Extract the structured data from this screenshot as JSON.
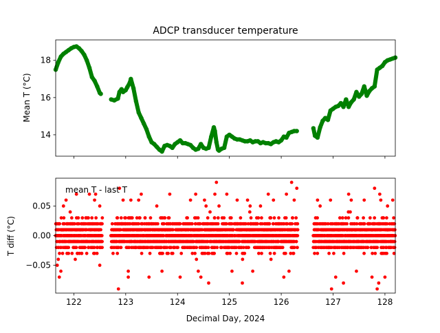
{
  "chart_data": [
    {
      "type": "line",
      "title": "ADCP transducer temperature",
      "xlabel": "",
      "ylabel": "Mean T (°C)",
      "xlim": [
        121.65,
        128.2
      ],
      "ylim": [
        12.85,
        19.1
      ],
      "yticks": [
        14,
        16,
        18
      ],
      "ytick_labels": [
        "14",
        "16",
        "18"
      ],
      "xticks": [
        122,
        123,
        124,
        125,
        126,
        127,
        128
      ],
      "show_xtick_labels": false,
      "grid": false,
      "color": "#008000",
      "marker": "circle",
      "series": [
        {
          "name": "",
          "x": [
            121.65,
            121.7,
            121.75,
            121.8,
            121.85,
            121.9,
            121.95,
            122.0,
            122.05,
            122.1,
            122.15,
            122.2,
            122.25,
            122.3,
            122.35,
            122.4,
            122.45,
            122.5,
            122.52,
            null,
            122.72,
            122.78,
            122.85,
            122.88,
            122.92,
            122.95,
            123.0,
            123.03,
            123.08,
            123.1,
            123.15,
            123.2,
            123.25,
            123.3,
            123.35,
            123.4,
            123.45,
            123.5,
            123.55,
            123.6,
            123.65,
            123.7,
            123.75,
            123.8,
            123.85,
            123.9,
            123.95,
            124.0,
            124.05,
            124.1,
            124.15,
            124.2,
            124.25,
            124.3,
            124.35,
            124.4,
            124.45,
            124.5,
            124.55,
            124.6,
            124.65,
            124.7,
            124.72,
            124.75,
            124.78,
            124.8,
            124.85,
            124.9,
            124.95,
            125.0,
            125.05,
            125.1,
            125.15,
            125.2,
            125.25,
            125.3,
            125.35,
            125.4,
            125.45,
            125.5,
            125.55,
            125.6,
            125.65,
            125.7,
            125.75,
            125.8,
            125.85,
            125.9,
            125.95,
            126.0,
            126.05,
            126.1,
            126.15,
            126.2,
            126.25,
            126.3,
            null,
            126.62,
            126.65,
            126.7,
            126.75,
            126.8,
            126.85,
            126.9,
            126.95,
            127.0,
            127.05,
            127.1,
            127.15,
            127.2,
            127.25,
            127.3,
            127.35,
            127.4,
            127.45,
            127.5,
            127.55,
            127.6,
            127.65,
            127.7,
            127.75,
            127.8,
            127.85,
            127.9,
            127.95,
            128.0,
            128.05,
            128.1,
            128.15,
            128.2
          ],
          "y": [
            17.5,
            17.9,
            18.2,
            18.35,
            18.45,
            18.55,
            18.65,
            18.72,
            18.75,
            18.65,
            18.5,
            18.3,
            18.0,
            17.6,
            17.1,
            16.9,
            16.6,
            16.25,
            16.2,
            null,
            15.9,
            15.85,
            15.95,
            16.3,
            16.45,
            16.3,
            16.4,
            16.55,
            16.8,
            17.0,
            16.5,
            15.8,
            15.2,
            14.9,
            14.6,
            14.3,
            13.9,
            13.6,
            13.5,
            13.35,
            13.2,
            13.1,
            13.4,
            13.45,
            13.4,
            13.3,
            13.5,
            13.6,
            13.7,
            13.55,
            13.55,
            13.5,
            13.45,
            13.3,
            13.2,
            13.25,
            13.5,
            13.3,
            13.25,
            13.3,
            13.9,
            14.4,
            14.2,
            13.6,
            13.2,
            13.15,
            13.25,
            13.3,
            13.9,
            14.0,
            13.9,
            13.8,
            13.75,
            13.75,
            13.7,
            13.65,
            13.65,
            13.7,
            13.6,
            13.65,
            13.65,
            13.55,
            13.6,
            13.55,
            13.55,
            13.5,
            13.6,
            13.65,
            13.6,
            13.7,
            13.9,
            13.85,
            14.1,
            14.15,
            14.2,
            14.2,
            null,
            14.35,
            13.95,
            13.85,
            14.4,
            14.75,
            14.9,
            14.8,
            15.3,
            15.4,
            15.5,
            15.55,
            15.7,
            15.5,
            15.9,
            15.5,
            15.75,
            15.9,
            16.3,
            16.05,
            16.2,
            16.6,
            16.1,
            16.35,
            16.5,
            16.6,
            17.5,
            17.6,
            17.7,
            17.9,
            18.0,
            18.05,
            18.1,
            18.15
          ]
        }
      ]
    },
    {
      "type": "scatter",
      "title": "",
      "xlabel": "Decimal Day, 2024",
      "ylabel": "T diff (°C)",
      "annotation": "mean T - last T",
      "xlim": [
        121.65,
        128.2
      ],
      "ylim": [
        -0.097,
        0.097
      ],
      "yticks": [
        -0.05,
        0.0,
        0.05
      ],
      "ytick_labels": [
        "−0.05",
        "0.00",
        "0.05"
      ],
      "xticks": [
        122,
        123,
        124,
        125,
        126,
        127,
        128
      ],
      "xtick_labels": [
        "122",
        "123",
        "124",
        "125",
        "126",
        "127",
        "128"
      ],
      "grid": false,
      "color": "#ff0000",
      "marker": "circle",
      "quantization_step": 0.01,
      "segments": [
        [
          121.65,
          122.55
        ],
        [
          122.72,
          126.32
        ],
        [
          126.62,
          128.2
        ]
      ],
      "series": [
        {
          "name": "",
          "points": [
            [
              121.68,
              -0.05
            ],
            [
              121.7,
              -0.04
            ],
            [
              121.72,
              -0.07
            ],
            [
              121.75,
              -0.06
            ],
            [
              121.8,
              0.05
            ],
            [
              121.85,
              0.06
            ],
            [
              122.05,
              0.07
            ],
            [
              122.3,
              0.07
            ],
            [
              122.4,
              0.06
            ],
            [
              122.42,
              0.07
            ],
            [
              122.5,
              0.05
            ],
            [
              122.5,
              -0.05
            ],
            [
              122.88,
              0.08
            ],
            [
              122.95,
              0.06
            ],
            [
              123.1,
              0.06
            ],
            [
              123.05,
              -0.06
            ],
            [
              123.05,
              -0.07
            ],
            [
              122.86,
              -0.09
            ],
            [
              123.25,
              0.06
            ],
            [
              123.3,
              0.07
            ],
            [
              123.45,
              -0.07
            ],
            [
              123.6,
              0.05
            ],
            [
              123.7,
              -0.06
            ],
            [
              123.85,
              0.07
            ],
            [
              124.05,
              -0.07
            ],
            [
              124.25,
              0.06
            ],
            [
              124.35,
              0.07
            ],
            [
              124.4,
              -0.06
            ],
            [
              124.45,
              -0.07
            ],
            [
              124.52,
              0.06
            ],
            [
              124.55,
              0.05
            ],
            [
              124.6,
              -0.08
            ],
            [
              124.72,
              0.07
            ],
            [
              124.75,
              0.09
            ],
            [
              124.8,
              0.05
            ],
            [
              124.95,
              0.07
            ],
            [
              125.05,
              -0.06
            ],
            [
              125.15,
              0.06
            ],
            [
              125.25,
              -0.08
            ],
            [
              125.35,
              0.06
            ],
            [
              125.4,
              0.05
            ],
            [
              125.45,
              -0.06
            ],
            [
              125.6,
              0.05
            ],
            [
              125.75,
              0.07
            ],
            [
              125.85,
              0.06
            ],
            [
              126.05,
              -0.07
            ],
            [
              126.1,
              0.07
            ],
            [
              126.15,
              -0.06
            ],
            [
              126.2,
              0.09
            ],
            [
              126.25,
              0.06
            ],
            [
              126.3,
              0.08
            ],
            [
              126.7,
              0.06
            ],
            [
              126.75,
              0.05
            ],
            [
              126.95,
              0.06
            ],
            [
              126.97,
              -0.09
            ],
            [
              127.05,
              -0.07
            ],
            [
              127.2,
              -0.08
            ],
            [
              127.3,
              0.07
            ],
            [
              127.35,
              0.06
            ],
            [
              127.45,
              -0.06
            ],
            [
              127.6,
              0.06
            ],
            [
              127.75,
              -0.07
            ],
            [
              127.8,
              0.08
            ],
            [
              127.85,
              -0.09
            ],
            [
              127.88,
              -0.08
            ],
            [
              127.9,
              0.07
            ],
            [
              127.92,
              0.06
            ],
            [
              128.0,
              -0.07
            ],
            [
              128.05,
              0.05
            ],
            [
              128.15,
              0.06
            ]
          ]
        }
      ]
    }
  ]
}
